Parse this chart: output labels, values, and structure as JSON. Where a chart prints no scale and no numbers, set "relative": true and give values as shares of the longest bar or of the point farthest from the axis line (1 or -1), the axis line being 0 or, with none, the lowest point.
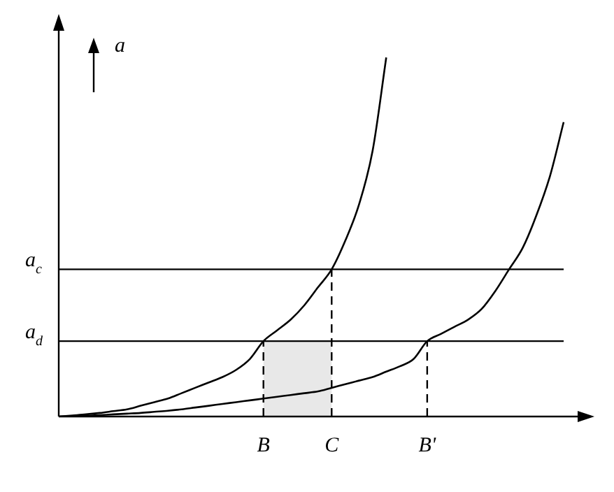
{
  "chart_data": {
    "type": "line",
    "relative": true,
    "ylabel": "a",
    "categories": [
      null,
      null,
      null,
      null,
      null,
      null,
      null,
      null,
      null,
      null,
      null,
      null,
      null,
      null,
      null,
      "B",
      null,
      null,
      null,
      null,
      "C",
      null,
      null,
      null,
      null,
      null,
      null,
      "B'",
      null,
      null,
      null,
      null,
      null,
      null,
      null,
      null,
      null,
      null
    ],
    "series": [
      {
        "color": "#000000",
        "values": [
          0,
          0.003,
          0.006,
          0.01,
          0.015,
          0.02,
          0.03,
          0.04,
          0.05,
          0.065,
          0.08,
          0.095,
          0.11,
          0.13,
          0.16,
          0.21,
          0.24,
          0.27,
          0.31,
          0.36,
          0.41,
          0.49,
          0.59,
          0.74,
          1.0,
          null,
          null,
          null,
          null,
          null,
          null,
          null,
          null,
          null,
          null,
          null,
          null,
          null
        ]
      },
      {
        "color": "#000000",
        "values": [
          0,
          0.001,
          0.002,
          0.004,
          0.006,
          0.008,
          0.01,
          0.013,
          0.016,
          0.02,
          0.025,
          0.03,
          0.035,
          0.04,
          0.045,
          0.05,
          0.055,
          0.06,
          0.065,
          0.07,
          0.08,
          0.09,
          0.1,
          0.11,
          0.125,
          0.14,
          0.16,
          0.21,
          0.23,
          0.25,
          0.27,
          0.3,
          0.35,
          0.41,
          0.47,
          0.56,
          0.67,
          0.82
        ]
      }
    ],
    "ref_lines": [
      {
        "axis": "y",
        "value": 0.41,
        "label": "a$_{c}$"
      },
      {
        "axis": "y",
        "value": 0.21,
        "label": "a$_{d}$"
      },
      {
        "axis": "x",
        "value": "B",
        "line_style": "dashed"
      },
      {
        "axis": "x",
        "value": "C",
        "line_style": "dashed"
      },
      {
        "axis": "x",
        "value": "B'",
        "line_style": "dashed"
      }
    ],
    "bands": [
      {
        "axis": "x",
        "from": "B",
        "to": "C",
        "color": "#e8e8e8"
      }
    ],
    "grid": false,
    "legend": false,
    "marker": "none",
    "line_style": "solid"
  }
}
